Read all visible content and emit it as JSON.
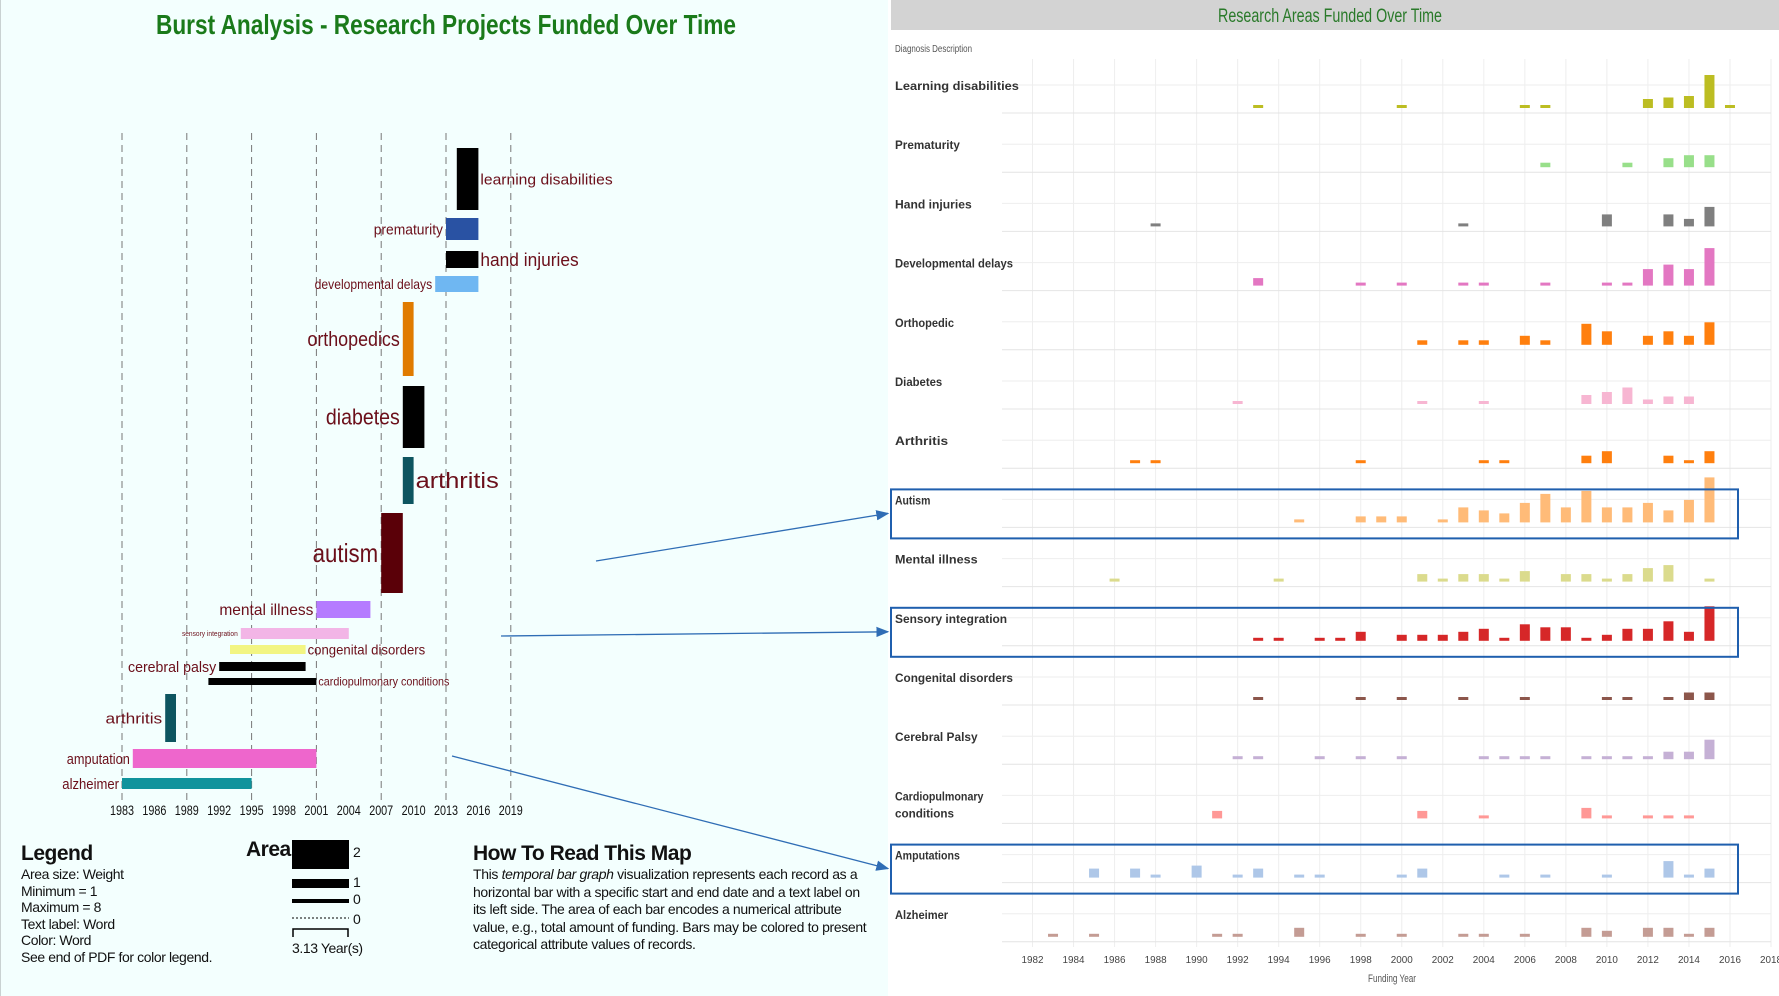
{
  "left": {
    "title": "Burst Analysis - Research Projects Funded Over Time",
    "title_color": "#1a7a1a",
    "label_color": "#6b0f1a",
    "chart_data": {
      "type": "bar",
      "subtype": "temporal-bar-graph",
      "x_ticks": [
        1983,
        1986,
        1989,
        1992,
        1995,
        1998,
        2001,
        2004,
        2007,
        2010,
        2013,
        2016,
        2019
      ],
      "xlim": [
        1983,
        2019
      ],
      "bursts": [
        {
          "label": "learning disabilities",
          "start": 2014,
          "end": 2016,
          "weight": 2,
          "color": "#000000"
        },
        {
          "label": "prematurity",
          "start": 2013,
          "end": 2016,
          "weight": 1.3,
          "color": "#2952a3"
        },
        {
          "label": "hand injuries",
          "start": 2013,
          "end": 2016,
          "weight": 1,
          "color": "#000000"
        },
        {
          "label": "developmental delays",
          "start": 2012,
          "end": 2016,
          "weight": 1,
          "color": "#6fb7f2"
        },
        {
          "label": "orthopedics",
          "start": 2009,
          "end": 2010,
          "weight": 2.4,
          "color": "#e07b00"
        },
        {
          "label": "diabetes",
          "start": 2009,
          "end": 2011,
          "weight": 2.1,
          "color": "#000000"
        },
        {
          "label": "arthritis",
          "start": 2009,
          "end": 2010,
          "weight": 1.6,
          "color": "#0d5560"
        },
        {
          "label": "autism",
          "start": 2007,
          "end": 2009,
          "weight": 2.6,
          "color": "#5a0008"
        },
        {
          "label": "mental illness",
          "start": 2001,
          "end": 2006,
          "weight": 1,
          "color": "#b57bff"
        },
        {
          "label": "sensory integration",
          "start": 1994,
          "end": 2004,
          "weight": 0.6,
          "color": "#f2b5e6"
        },
        {
          "label": "congenital disorders",
          "start": 1993,
          "end": 2000,
          "weight": 0.5,
          "color": "#f2f582"
        },
        {
          "label": "cerebral palsy",
          "start": 1992,
          "end": 2000,
          "weight": 0.4,
          "color": "#000000"
        },
        {
          "label": "cardiopulmonary conditions",
          "start": 1991,
          "end": 2001,
          "weight": 0.4,
          "color": "#000000"
        },
        {
          "label": "arthritis",
          "start": 1987,
          "end": 1988,
          "weight": 1.6,
          "color": "#0d5560"
        },
        {
          "label": "amputation",
          "start": 1984,
          "end": 2001,
          "weight": 0.7,
          "color": "#ee66cc"
        },
        {
          "label": "alzheimer",
          "start": 1983,
          "end": 1995,
          "weight": 0.4,
          "color": "#10939c"
        }
      ]
    },
    "legend": {
      "title": "Legend",
      "lines": [
        "Area size: Weight",
        "Minimum = 1",
        "Maximum = 8",
        "Text label: Word",
        "Color: Word",
        "See end of PDF for color legend."
      ]
    },
    "area_legend": {
      "title": "Area",
      "values": [
        "2",
        "1",
        "0",
        "0"
      ],
      "scale_label": "3.13 Year(s)"
    },
    "how_to_read": {
      "title": "How To Read This Map",
      "text_before": "This ",
      "text_italic": "temporal bar graph",
      "text_after": " visualization represents each record as a horizontal bar with a specific start and end date and a text label on its left side. The area of each bar encodes a numerical attribute value, e.g., total amount of funding. Bars may be colored to present categorical attribute values of records."
    }
  },
  "right": {
    "title": "Research Areas Funded Over Time",
    "title_color": "#2a7a2a",
    "header_bg": "#d3d3d3",
    "column_header": "Diagnosis Description",
    "chart_data": {
      "type": "bar",
      "subtype": "small-multiples",
      "xlabel": "Funding Year",
      "x_ticks": [
        1982,
        1984,
        1986,
        1988,
        1990,
        1992,
        1994,
        1996,
        1998,
        2000,
        2002,
        2004,
        2006,
        2008,
        2010,
        2012,
        2014,
        2016,
        2018
      ],
      "xlim": [
        1981,
        2018
      ],
      "ylim": [
        0,
        4
      ],
      "highlighted": [
        "Autism",
        "Sensory integration",
        "Amputations"
      ],
      "series": [
        {
          "name": "Learning disabilities",
          "color": "#bcbd22",
          "x": [
            1993,
            2000,
            2006,
            2007,
            2012,
            2013,
            2014,
            2015,
            2016
          ],
          "values": [
            0.2,
            0.2,
            0.2,
            0.2,
            0.6,
            0.7,
            0.8,
            2.2,
            0.2
          ]
        },
        {
          "name": "Prematurity",
          "color": "#98df8a",
          "x": [
            2007,
            2011,
            2013,
            2014,
            2015
          ],
          "values": [
            0.3,
            0.3,
            0.6,
            0.8,
            0.8
          ]
        },
        {
          "name": "Hand injuries",
          "color": "#7f7f7f",
          "x": [
            1988,
            2003,
            2010,
            2013,
            2014,
            2015
          ],
          "values": [
            0.2,
            0.2,
            0.8,
            0.8,
            0.5,
            1.3
          ]
        },
        {
          "name": "Developmental delays",
          "color": "#e377c2",
          "x": [
            1993,
            1998,
            2000,
            2003,
            2004,
            2007,
            2010,
            2011,
            2012,
            2013,
            2014,
            2015
          ],
          "values": [
            0.5,
            0.2,
            0.2,
            0.2,
            0.2,
            0.2,
            0.2,
            0.2,
            1.1,
            1.4,
            1.1,
            2.5
          ]
        },
        {
          "name": "Orthopedic",
          "color": "#ff7f0e",
          "x": [
            2001,
            2003,
            2004,
            2006,
            2007,
            2009,
            2010,
            2012,
            2013,
            2014,
            2015
          ],
          "values": [
            0.3,
            0.3,
            0.3,
            0.6,
            0.3,
            1.4,
            0.9,
            0.6,
            0.9,
            0.6,
            1.5
          ]
        },
        {
          "name": "Diabetes",
          "color": "#f7b6d2",
          "x": [
            1992,
            2001,
            2004,
            2009,
            2010,
            2011,
            2012,
            2013,
            2014
          ],
          "values": [
            0.2,
            0.2,
            0.2,
            0.6,
            0.8,
            1.1,
            0.3,
            0.5,
            0.5
          ]
        },
        {
          "name": "Arthritis",
          "color": "#ff7f0e",
          "x": [
            1987,
            1988,
            1998,
            2004,
            2005,
            2009,
            2010,
            2013,
            2014,
            2015
          ],
          "values": [
            0.2,
            0.2,
            0.2,
            0.2,
            0.2,
            0.5,
            0.8,
            0.5,
            0.2,
            0.8
          ]
        },
        {
          "name": "Autism",
          "color": "#ffbb78",
          "x": [
            1995,
            1998,
            1999,
            2000,
            2002,
            2003,
            2004,
            2005,
            2006,
            2007,
            2008,
            2009,
            2010,
            2011,
            2012,
            2013,
            2014,
            2015
          ],
          "values": [
            0.2,
            0.4,
            0.4,
            0.4,
            0.2,
            1.0,
            0.8,
            0.6,
            1.3,
            1.9,
            1.0,
            2.1,
            1.0,
            1.0,
            1.3,
            0.8,
            1.5,
            3.0
          ]
        },
        {
          "name": "Mental illness",
          "color": "#dbdb8d",
          "x": [
            1986,
            1994,
            2001,
            2002,
            2003,
            2004,
            2005,
            2006,
            2008,
            2009,
            2010,
            2011,
            2012,
            2013,
            2015
          ],
          "values": [
            0.2,
            0.2,
            0.5,
            0.2,
            0.5,
            0.5,
            0.2,
            0.7,
            0.5,
            0.5,
            0.2,
            0.5,
            0.9,
            1.1,
            0.2
          ]
        },
        {
          "name": "Sensory integration",
          "color": "#d62728",
          "x": [
            1993,
            1994,
            1996,
            1997,
            1998,
            2000,
            2001,
            2002,
            2003,
            2004,
            2005,
            2006,
            2007,
            2008,
            2009,
            2010,
            2011,
            2012,
            2013,
            2014,
            2015
          ],
          "values": [
            0.2,
            0.2,
            0.2,
            0.2,
            0.6,
            0.4,
            0.4,
            0.4,
            0.6,
            0.8,
            0.2,
            1.1,
            0.9,
            0.9,
            0.2,
            0.4,
            0.8,
            0.8,
            1.3,
            0.6,
            2.3
          ]
        },
        {
          "name": "Congenital disorders",
          "color": "#8c564b",
          "x": [
            1993,
            1998,
            2000,
            2003,
            2006,
            2010,
            2011,
            2013,
            2014,
            2015
          ],
          "values": [
            0.2,
            0.2,
            0.2,
            0.2,
            0.2,
            0.2,
            0.2,
            0.2,
            0.5,
            0.5
          ]
        },
        {
          "name": "Cerebral Palsy",
          "color": "#c5b0d5",
          "x": [
            1992,
            1993,
            1996,
            1998,
            2000,
            2004,
            2005,
            2006,
            2007,
            2009,
            2010,
            2011,
            2012,
            2013,
            2014,
            2015
          ],
          "values": [
            0.2,
            0.2,
            0.2,
            0.2,
            0.2,
            0.2,
            0.2,
            0.2,
            0.2,
            0.2,
            0.2,
            0.2,
            0.2,
            0.5,
            0.5,
            1.3
          ]
        },
        {
          "name": "Cardiopulmonary conditions",
          "color": "#ff9896",
          "x": [
            1991,
            2001,
            2004,
            2009,
            2010,
            2012,
            2013,
            2014
          ],
          "values": [
            0.5,
            0.5,
            0.2,
            0.7,
            0.2,
            0.2,
            0.2,
            0.2
          ]
        },
        {
          "name": "Amputations",
          "color": "#aec7e8",
          "x": [
            1985,
            1987,
            1988,
            1990,
            1992,
            1993,
            1995,
            1996,
            2000,
            2001,
            2005,
            2007,
            2010,
            2013,
            2014,
            2015
          ],
          "values": [
            0.6,
            0.6,
            0.2,
            0.8,
            0.2,
            0.6,
            0.2,
            0.2,
            0.2,
            0.6,
            0.2,
            0.2,
            0.2,
            1.1,
            0.2,
            0.6
          ]
        },
        {
          "name": "Alzheimer",
          "color": "#c49c94",
          "x": [
            1983,
            1985,
            1991,
            1992,
            1995,
            1998,
            2000,
            2003,
            2004,
            2006,
            2009,
            2010,
            2012,
            2013,
            2014,
            2015
          ],
          "values": [
            0.2,
            0.2,
            0.2,
            0.2,
            0.6,
            0.2,
            0.2,
            0.2,
            0.2,
            0.2,
            0.6,
            0.4,
            0.6,
            0.6,
            0.2,
            0.6
          ]
        }
      ]
    },
    "row_labels": [
      [
        "Learning disabilities"
      ],
      [
        "Prematurity"
      ],
      [
        "Hand injuries"
      ],
      [
        "Developmental delays"
      ],
      [
        "Orthopedic"
      ],
      [
        "Diabetes"
      ],
      [
        "Arthritis"
      ],
      [
        "Autism"
      ],
      [
        "Mental illness"
      ],
      [
        "Sensory integration"
      ],
      [
        "Congenital disorders"
      ],
      [
        "Cerebral Palsy"
      ],
      [
        "Cardiopulmonary",
        "conditions"
      ],
      [
        "Amputations"
      ],
      [
        "Alzheimer"
      ]
    ]
  }
}
